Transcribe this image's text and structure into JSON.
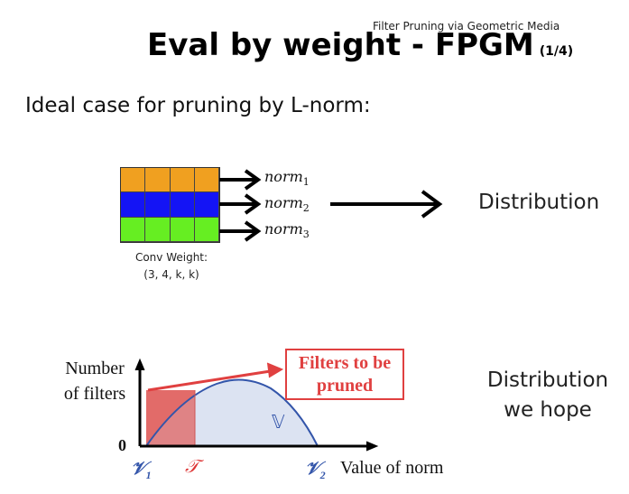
{
  "header": {
    "source_note": "Filter Pruning via Geometric Media",
    "title": "Eval by weight - FPGM",
    "page_indicator": "(1/4)"
  },
  "intro_text": "Ideal case for pruning by L-norm:",
  "weight_diagram": {
    "row_colors": [
      "#f0a020",
      "#1414f5",
      "#66ee22"
    ],
    "norms": [
      {
        "base": "norm",
        "sub": "1"
      },
      {
        "base": "norm",
        "sub": "2"
      },
      {
        "base": "norm",
        "sub": "3"
      }
    ],
    "caption_line1": "Conv Weight:",
    "caption_line2": "(3, 4, k, k)",
    "result_label": "Distribution"
  },
  "distribution_chart": {
    "y_title_line1": "Number",
    "y_title_line2": "of filters",
    "zero": "0",
    "v1": "𝒱",
    "v1_sub": "1",
    "threshold": "𝒯",
    "v2": "𝒱",
    "v2_sub": "2",
    "x_title": "Value of norm",
    "curve_label": "𝕍",
    "annotation_line1": "Filters to be",
    "annotation_line2": "pruned",
    "colors": {
      "pruned_fill": "#e8706e",
      "curve_fill": "#d6def0",
      "curve_line": "#3355aa",
      "annotation": "#e04040"
    }
  },
  "hope_label_line1": "Distribution",
  "hope_label_line2": "we hope"
}
